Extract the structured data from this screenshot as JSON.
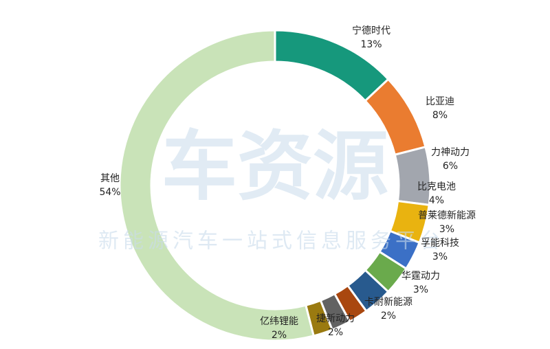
{
  "chart_data": {
    "type": "donut",
    "categories": [
      "宁德时代",
      "比亚迪",
      "力神动力",
      "比克电池",
      "普莱德新能源",
      "孚能科技",
      "华霆动力",
      "卡耐新能源",
      "捷新动力",
      "亿纬锂能",
      "其他"
    ],
    "values": [
      13,
      8,
      6,
      4,
      3,
      3,
      3,
      2,
      2,
      2,
      54
    ],
    "value_labels": [
      "13%",
      "8%",
      "6%",
      "4%",
      "3%",
      "3%",
      "3%",
      "2%",
      "2%",
      "2%",
      "54%"
    ],
    "colors": [
      "#16987c",
      "#ea7c30",
      "#a2a6ae",
      "#e9b310",
      "#3b70c6",
      "#6aaa4c",
      "#285a8e",
      "#a9470f",
      "#626262",
      "#9a7a10",
      "#c9e3b8"
    ]
  },
  "watermark": {
    "logo": "车资源",
    "slogan": "新能源汽车一站式信息服务平台"
  }
}
